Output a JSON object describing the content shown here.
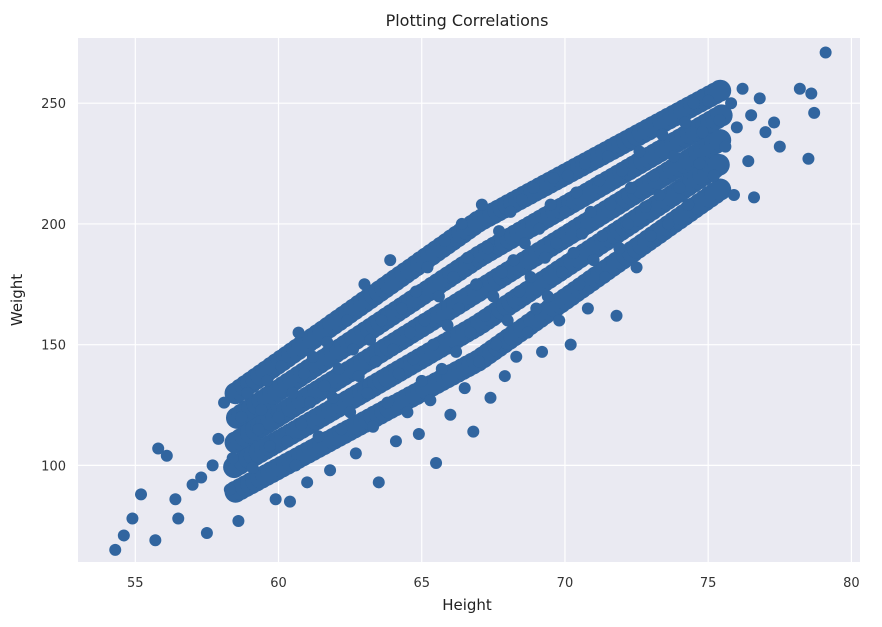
{
  "chart_data": {
    "type": "scatter",
    "title": "Plotting Correlations",
    "xlabel": "Height",
    "ylabel": "Weight",
    "xlim": [
      53.0,
      80.3
    ],
    "ylim": [
      60,
      277
    ],
    "xticks": [
      55,
      60,
      65,
      70,
      75,
      80
    ],
    "yticks": [
      100,
      150,
      200,
      250
    ],
    "grid": true,
    "legend": "none",
    "colors": {
      "background": "#eaeaf2",
      "grid": "#ffffff",
      "marker": "#31659f"
    },
    "series": [
      {
        "color": "#31659f",
        "points": [
          [
            54.3,
            65
          ],
          [
            54.6,
            71
          ],
          [
            54.9,
            78
          ],
          [
            55.2,
            88
          ],
          [
            55.7,
            69
          ],
          [
            55.8,
            107
          ],
          [
            56.1,
            104
          ],
          [
            56.4,
            86
          ],
          [
            56.5,
            78
          ],
          [
            57.0,
            92
          ],
          [
            57.3,
            95
          ],
          [
            57.5,
            72
          ],
          [
            57.7,
            100
          ],
          [
            57.9,
            111
          ],
          [
            58.1,
            126
          ],
          [
            58.3,
            90
          ],
          [
            58.4,
            103
          ],
          [
            58.6,
            77
          ],
          [
            58.7,
            120
          ],
          [
            58.9,
            130
          ],
          [
            59.1,
            99
          ],
          [
            59.3,
            115
          ],
          [
            59.4,
            123
          ],
          [
            59.6,
            135
          ],
          [
            59.7,
            108
          ],
          [
            59.9,
            86
          ],
          [
            60.0,
            120
          ],
          [
            60.1,
            141
          ],
          [
            60.3,
            110
          ],
          [
            60.4,
            85
          ],
          [
            60.5,
            130
          ],
          [
            60.6,
            100
          ],
          [
            60.7,
            155
          ],
          [
            60.8,
            117
          ],
          [
            60.9,
            138
          ],
          [
            61.0,
            93
          ],
          [
            61.1,
            126
          ],
          [
            61.2,
            145
          ],
          [
            61.4,
            112
          ],
          [
            61.6,
            133
          ],
          [
            61.7,
            151
          ],
          [
            61.8,
            98
          ],
          [
            61.9,
            128
          ],
          [
            62.1,
            140
          ],
          [
            62.2,
            115
          ],
          [
            62.4,
            160
          ],
          [
            62.5,
            122
          ],
          [
            62.6,
            148
          ],
          [
            62.7,
            105
          ],
          [
            62.8,
            137
          ],
          [
            63.0,
            175
          ],
          [
            63.1,
            130
          ],
          [
            63.2,
            152
          ],
          [
            63.3,
            116
          ],
          [
            63.4,
            143
          ],
          [
            63.5,
            93
          ],
          [
            63.6,
            160
          ],
          [
            63.8,
            126
          ],
          [
            63.9,
            185
          ],
          [
            64.0,
            148
          ],
          [
            64.1,
            110
          ],
          [
            64.2,
            138
          ],
          [
            64.3,
            165
          ],
          [
            64.5,
            122
          ],
          [
            64.6,
            155
          ],
          [
            64.7,
            144
          ],
          [
            64.8,
            172
          ],
          [
            64.9,
            113
          ],
          [
            65.0,
            135
          ],
          [
            65.1,
            160
          ],
          [
            65.2,
            182
          ],
          [
            65.3,
            127
          ],
          [
            65.4,
            150
          ],
          [
            65.5,
            101
          ],
          [
            65.6,
            170
          ],
          [
            65.7,
            140
          ],
          [
            65.8,
            193
          ],
          [
            65.9,
            158
          ],
          [
            66.0,
            121
          ],
          [
            66.1,
            178
          ],
          [
            66.2,
            147
          ],
          [
            66.3,
            165
          ],
          [
            66.4,
            200
          ],
          [
            66.5,
            132
          ],
          [
            66.6,
            186
          ],
          [
            66.7,
            155
          ],
          [
            66.8,
            114
          ],
          [
            66.9,
            175
          ],
          [
            67.0,
            143
          ],
          [
            67.1,
            208
          ],
          [
            67.2,
            162
          ],
          [
            67.3,
            190
          ],
          [
            67.4,
            128
          ],
          [
            67.5,
            170
          ],
          [
            67.6,
            150
          ],
          [
            67.7,
            197
          ],
          [
            67.8,
            180
          ],
          [
            67.9,
            137
          ],
          [
            68.0,
            160
          ],
          [
            68.1,
            205
          ],
          [
            68.2,
            185
          ],
          [
            68.3,
            145
          ],
          [
            68.4,
            172
          ],
          [
            68.5,
            210
          ],
          [
            68.6,
            192
          ],
          [
            68.7,
            155
          ],
          [
            68.8,
            178
          ],
          [
            68.9,
            215
          ],
          [
            69.0,
            165
          ],
          [
            69.1,
            198
          ],
          [
            69.2,
            147
          ],
          [
            69.3,
            186
          ],
          [
            69.4,
            170
          ],
          [
            69.5,
            208
          ],
          [
            69.6,
            219
          ],
          [
            69.7,
            192
          ],
          [
            69.8,
            160
          ],
          [
            69.9,
            180
          ],
          [
            70.0,
            205
          ],
          [
            70.1,
            220
          ],
          [
            70.2,
            150
          ],
          [
            70.3,
            188
          ],
          [
            70.4,
            213
          ],
          [
            70.5,
            175
          ],
          [
            70.6,
            196
          ],
          [
            70.7,
            225
          ],
          [
            70.8,
            165
          ],
          [
            70.9,
            205
          ],
          [
            71.0,
            185
          ],
          [
            71.2,
            218
          ],
          [
            71.3,
            195
          ],
          [
            71.4,
            178
          ],
          [
            71.5,
            228
          ],
          [
            71.6,
            208
          ],
          [
            71.8,
            162
          ],
          [
            71.9,
            190
          ],
          [
            72.0,
            222
          ],
          [
            72.2,
            200
          ],
          [
            72.3,
            215
          ],
          [
            72.5,
            182
          ],
          [
            72.6,
            230
          ],
          [
            72.8,
            207
          ],
          [
            73.0,
            195
          ],
          [
            73.1,
            220
          ],
          [
            73.3,
            212
          ],
          [
            73.4,
            237
          ],
          [
            73.6,
            200
          ],
          [
            73.8,
            228
          ],
          [
            74.0,
            215
          ],
          [
            74.2,
            242
          ],
          [
            74.3,
            208
          ],
          [
            74.5,
            250
          ],
          [
            74.7,
            225
          ],
          [
            74.8,
            238
          ],
          [
            75.0,
            251
          ],
          [
            75.2,
            220
          ],
          [
            75.4,
            243
          ],
          [
            75.6,
            232
          ],
          [
            75.8,
            250
          ],
          [
            75.9,
            212
          ],
          [
            76.0,
            240
          ],
          [
            76.2,
            256
          ],
          [
            76.4,
            226
          ],
          [
            76.5,
            245
          ],
          [
            76.6,
            211
          ],
          [
            76.8,
            252
          ],
          [
            77.0,
            238
          ],
          [
            77.3,
            242
          ],
          [
            77.5,
            232
          ],
          [
            78.2,
            256
          ],
          [
            78.5,
            227
          ],
          [
            78.6,
            254
          ],
          [
            78.7,
            246
          ],
          [
            79.1,
            271
          ]
        ]
      }
    ]
  }
}
